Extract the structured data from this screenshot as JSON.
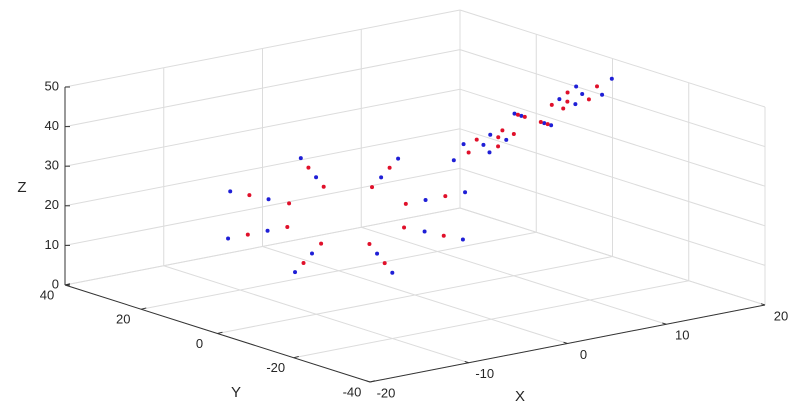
{
  "chart_data": {
    "type": "scatter3d",
    "xlabel": "X",
    "ylabel": "Y",
    "zlabel": "Z",
    "xlim": [
      -20,
      20
    ],
    "ylim": [
      -40,
      40
    ],
    "zlim": [
      0,
      50
    ],
    "xticks": [
      -20,
      -10,
      0,
      10,
      20
    ],
    "yticks": [
      -40,
      -20,
      0,
      20,
      40
    ],
    "zticks": [
      0,
      10,
      20,
      30,
      40,
      50
    ],
    "grid": true,
    "series": [
      {
        "color": "#1f1fd6",
        "x": [
          3,
          0.7,
          -5,
          -10.7,
          -13,
          -10.7,
          -5,
          0.7,
          7,
          3.5,
          -5,
          -13.5,
          -17,
          -13.5,
          -5,
          3.5,
          15,
          13.5,
          10,
          6.5,
          5,
          6.5,
          10,
          13.5,
          18,
          15.7,
          10,
          4.3,
          2,
          4.3,
          10,
          15.7
        ],
        "y": [
          5,
          10.7,
          13,
          10.7,
          5,
          -0.7,
          -3,
          -0.7,
          5,
          13.5,
          17,
          13.5,
          5,
          -3.5,
          -7,
          -3.5,
          -5,
          -2.9,
          -2,
          -2.9,
          -5,
          -7.1,
          -8,
          -7.1,
          -5,
          -1.6,
          -0.2,
          -1.6,
          -5,
          -8.4,
          -9.8,
          -8.4
        ],
        "z": [
          21,
          26.1,
          28.2,
          26.1,
          21,
          15.9,
          13.8,
          15.9,
          21,
          28.6,
          31.8,
          28.6,
          21,
          13.4,
          10.2,
          13.4,
          45,
          43.8,
          41,
          38.2,
          37,
          38.2,
          41,
          43.8,
          47.4,
          45.5,
          41,
          36.5,
          34.6,
          36.5,
          41,
          45.5
        ]
      },
      {
        "color": "#e0102a",
        "x": [
          5,
          2.1,
          -5,
          -12.1,
          -15,
          -12.1,
          -5,
          2.1,
          1,
          -0.8,
          -5,
          -9.2,
          -11,
          -9.2,
          -5,
          -0.8,
          16.5,
          14.6,
          10,
          5.4,
          3.5,
          5.4,
          10,
          14.6,
          13.5,
          12.5,
          10,
          7.5,
          6.5,
          7.5,
          10,
          12.5
        ],
        "y": [
          5,
          12.1,
          15,
          12.1,
          5,
          -2.1,
          -5,
          -2.1,
          5,
          9.2,
          11,
          9.2,
          5,
          0.8,
          -1,
          0.8,
          -5,
          -2.2,
          -1.1,
          -2.2,
          -5,
          -7.8,
          -8.9,
          -7.8,
          -5,
          -3.5,
          -2.9,
          -3.5,
          -5,
          -6.5,
          -7.1,
          -6.5
        ],
        "z": [
          21,
          27.4,
          30,
          27.4,
          21,
          14.6,
          12,
          14.6,
          21,
          24.8,
          26.4,
          24.8,
          21,
          17.2,
          15.6,
          17.2,
          46.2,
          44.7,
          41,
          37.3,
          35.8,
          37.3,
          41,
          44.7,
          43.8,
          43,
          41,
          39,
          38.2,
          39,
          41,
          43
        ]
      }
    ]
  }
}
